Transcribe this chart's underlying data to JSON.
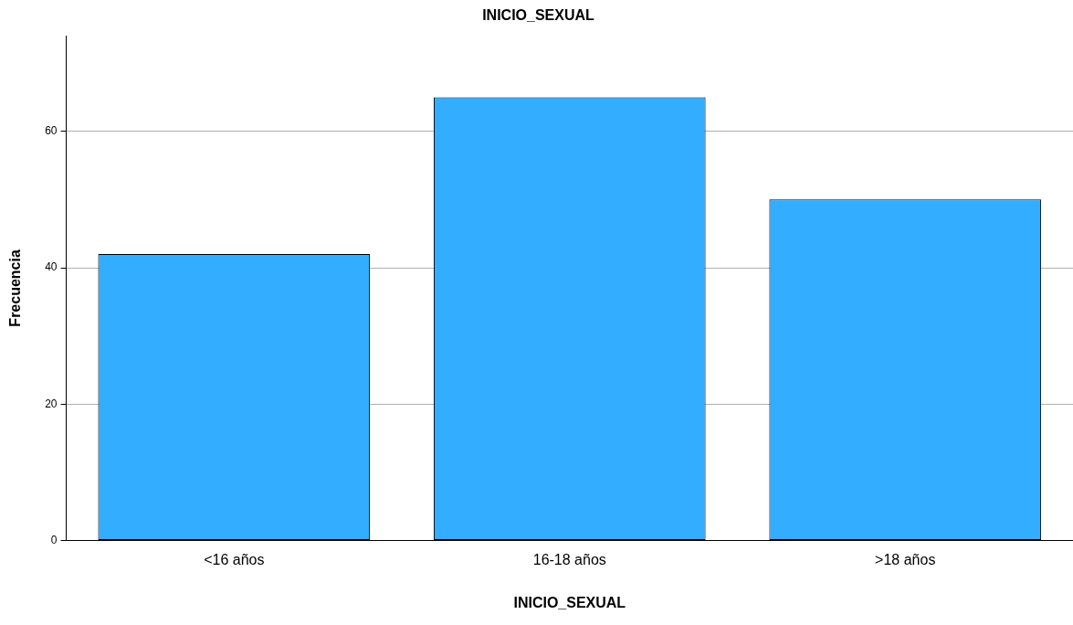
{
  "chart_data": {
    "type": "bar",
    "title": "INICIO_SEXUAL",
    "xlabel": "INICIO_SEXUAL",
    "ylabel": "Frecuencia",
    "categories": [
      "<16 años",
      "16-18 años",
      ">18 años"
    ],
    "values": [
      42,
      65,
      50
    ],
    "color": "#33adff",
    "ylim": [
      0,
      74
    ],
    "yticks": [
      0,
      20,
      40,
      60
    ],
    "grid": "y"
  }
}
